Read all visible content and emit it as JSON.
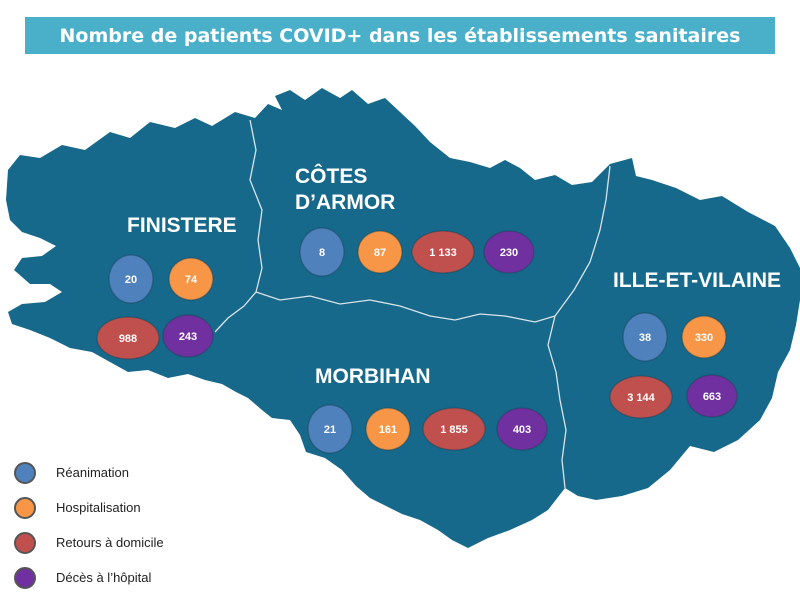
{
  "title": "Nombre de patients COVID+ dans les établissements sanitaires",
  "colors": {
    "land": "#16698a",
    "border": "#d8e4ea",
    "reanimation": "#4f81bd",
    "hospitalisation": "#f79646",
    "retours": "#c0504d",
    "deces": "#7030a0"
  },
  "departments": [
    {
      "key": "finistere",
      "name_lines": [
        "FINISTERE"
      ],
      "values": {
        "reanimation": "20",
        "hospitalisation": "74",
        "retours": "988",
        "deces": "243"
      }
    },
    {
      "key": "cotes",
      "name_lines": [
        "CÔTES",
        "D’ARMOR"
      ],
      "values": {
        "reanimation": "8",
        "hospitalisation": "87",
        "retours": "1 133",
        "deces": "230"
      }
    },
    {
      "key": "morbihan",
      "name_lines": [
        "MORBIHAN"
      ],
      "values": {
        "reanimation": "21",
        "hospitalisation": "161",
        "retours": "1 855",
        "deces": "403"
      }
    },
    {
      "key": "ille",
      "name_lines": [
        "ILLE-ET-VILAINE"
      ],
      "values": {
        "reanimation": "38",
        "hospitalisation": "330",
        "retours": "3 144",
        "deces": "663"
      }
    }
  ],
  "legend": [
    {
      "key": "reanimation",
      "label": "Réanimation"
    },
    {
      "key": "hospitalisation",
      "label": "Hospitalisation"
    },
    {
      "key": "retours",
      "label": "Retours à domicile"
    },
    {
      "key": "deces",
      "label": "Décès à l’hôpital"
    }
  ]
}
